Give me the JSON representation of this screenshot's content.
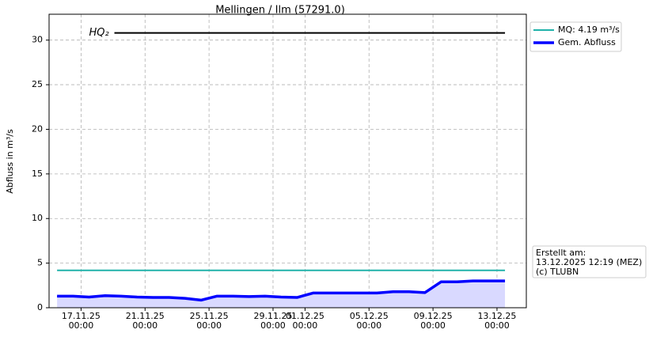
{
  "chart_data": {
    "type": "line",
    "title": "Mellingen / Ilm (57291.0)",
    "y_label": "Abfluss in m³/s",
    "xlim": [
      "2025-11-15T00:00",
      "2025-12-14T20:00"
    ],
    "ylim": [
      0,
      32.9
    ],
    "xticks": [
      {
        "value": "2025-11-17T00:00",
        "label": "17.11.25\n00:00"
      },
      {
        "value": "2025-11-21T00:00",
        "label": "21.11.25\n00:00"
      },
      {
        "value": "2025-11-25T00:00",
        "label": "25.11.25\n00:00"
      },
      {
        "value": "2025-11-29T00:00",
        "label": "29.11.25\n00:00"
      },
      {
        "value": "2025-12-01T00:00",
        "label": "01.12.25\n00:00"
      },
      {
        "value": "2025-12-05T00:00",
        "label": "05.12.25\n00:00"
      },
      {
        "value": "2025-12-09T00:00",
        "label": "09.12.25\n00:00"
      },
      {
        "value": "2025-12-13T00:00",
        "label": "13.12.25\n00:00"
      }
    ],
    "yticks": [
      0,
      5,
      10,
      15,
      20,
      25,
      30
    ],
    "grid": true,
    "legend": "outside-upper-right",
    "series": [
      {
        "name": "MQ: 4.19 m³/s",
        "color": "#20b2aa",
        "width": 2,
        "x": [
          "2025-11-15T12:00",
          "2025-12-13T12:00"
        ],
        "values": [
          4.19,
          4.19
        ]
      },
      {
        "name": "Gem. Abfluss",
        "color": "#0000ff",
        "width": 3.5,
        "fill": "#d9d9ff",
        "x": [
          "2025-11-15T12:00",
          "2025-11-16T12:00",
          "2025-11-17T12:00",
          "2025-11-18T12:00",
          "2025-11-19T12:00",
          "2025-11-20T12:00",
          "2025-11-21T12:00",
          "2025-11-22T12:00",
          "2025-11-23T12:00",
          "2025-11-24T12:00",
          "2025-11-25T12:00",
          "2025-11-26T12:00",
          "2025-11-27T12:00",
          "2025-11-28T12:00",
          "2025-11-29T12:00",
          "2025-11-30T12:00",
          "2025-12-01T12:00",
          "2025-12-02T12:00",
          "2025-12-03T12:00",
          "2025-12-04T12:00",
          "2025-12-05T12:00",
          "2025-12-06T12:00",
          "2025-12-07T12:00",
          "2025-12-08T12:00",
          "2025-12-09T12:00",
          "2025-12-10T12:00",
          "2025-12-11T12:00",
          "2025-12-12T12:00",
          "2025-12-13T12:00"
        ],
        "values": [
          1.3,
          1.3,
          1.2,
          1.35,
          1.3,
          1.2,
          1.15,
          1.15,
          1.05,
          0.85,
          1.3,
          1.3,
          1.25,
          1.3,
          1.2,
          1.15,
          1.65,
          1.65,
          1.65,
          1.65,
          1.65,
          1.8,
          1.8,
          1.7,
          2.9,
          2.9,
          3.0,
          3.0,
          3.0
        ]
      }
    ],
    "annotations": [
      {
        "text": "HQ₂",
        "value": 30.8,
        "x": [
          "2025-11-17T12:00",
          "2025-12-13T12:00"
        ],
        "color": "#000000"
      },
      {
        "text": "Erstellt am:\n13.12.2025 12:19 (MEZ)\n(c) TLUBN"
      }
    ]
  }
}
